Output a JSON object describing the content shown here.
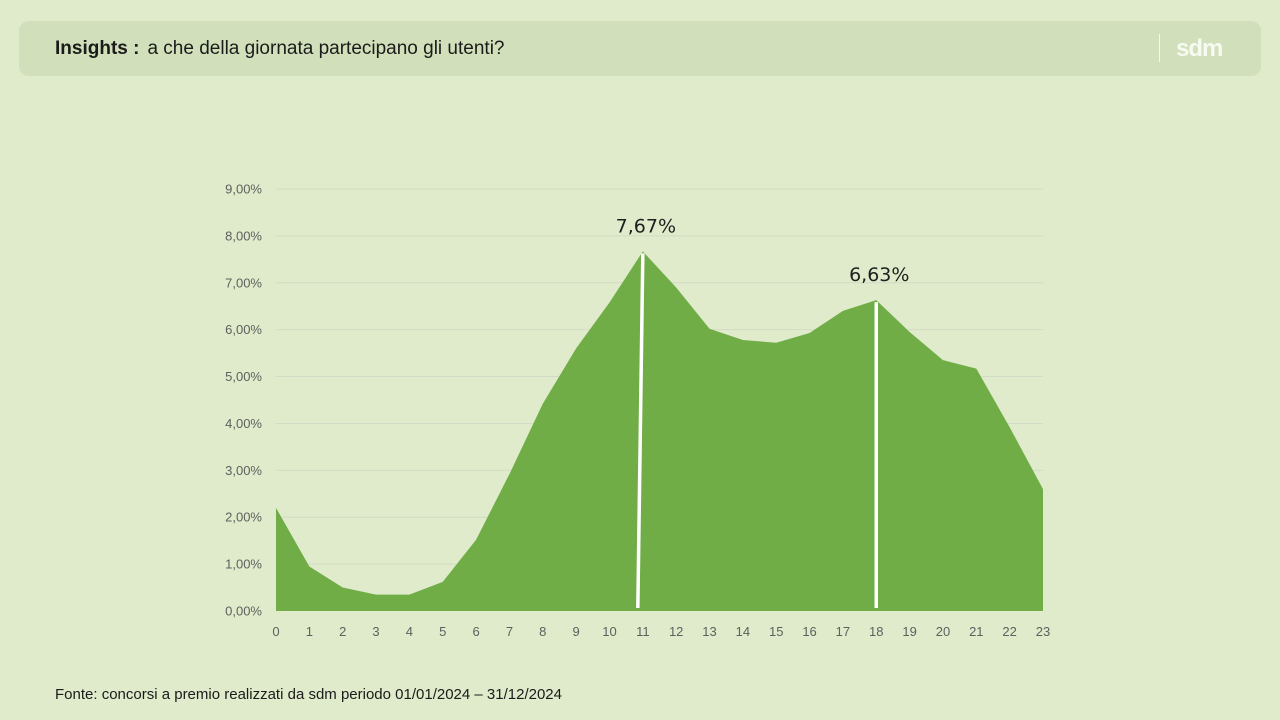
{
  "header": {
    "title_bold": "Insights :",
    "title_text": "a che della giornata partecipano gli utenti?",
    "logo": "sdm"
  },
  "footer": {
    "source": "Fonte: concorsi a premio realizzati da sdm periodo 01/01/2024 – 31/12/2024"
  },
  "colors": {
    "area": "#70ad47",
    "marker": "#ffffff",
    "grid": "#d2dbc6"
  },
  "chart_data": {
    "type": "area",
    "x": [
      0,
      1,
      2,
      3,
      4,
      5,
      6,
      7,
      8,
      9,
      10,
      11,
      12,
      13,
      14,
      15,
      16,
      17,
      18,
      19,
      20,
      21,
      22,
      23
    ],
    "values": [
      2.2,
      0.95,
      0.5,
      0.35,
      0.35,
      0.62,
      1.52,
      2.92,
      4.42,
      5.6,
      6.58,
      7.67,
      6.9,
      6.02,
      5.78,
      5.72,
      5.93,
      6.4,
      6.63,
      5.95,
      5.35,
      5.17,
      3.92,
      2.6
    ],
    "yticks": [
      "0,00%",
      "1,00%",
      "2,00%",
      "3,00%",
      "4,00%",
      "5,00%",
      "6,00%",
      "7,00%",
      "8,00%",
      "9,00%"
    ],
    "ylim": [
      0,
      9
    ],
    "grid": true,
    "annotations": [
      {
        "x": 11,
        "value": 7.67,
        "label": "7,67%"
      },
      {
        "x": 18,
        "value": 6.63,
        "label": "6,63%"
      }
    ]
  }
}
